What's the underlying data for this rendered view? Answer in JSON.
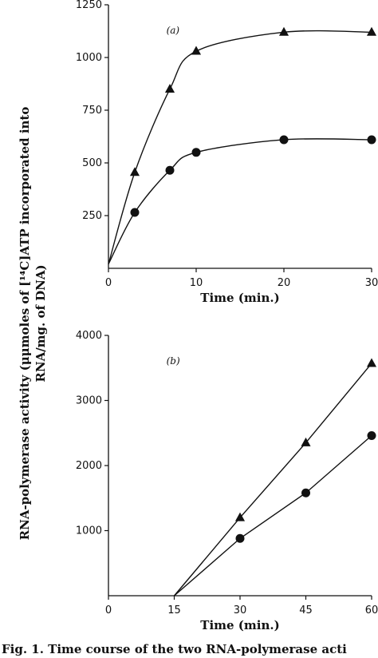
{
  "y_label_line1": "RNA-polymerase activity (μμmoles of [¹⁴C]ATP incorporated into",
  "y_label_line2": "RNA/mg. of DNA)",
  "caption": "Fig. 1. Time course of the two RNA-polymerase acti",
  "chart_data": [
    {
      "type": "line",
      "panel_label": "(a)",
      "xlabel": "Time (min.)",
      "ylabel": "",
      "xlim": [
        0,
        30
      ],
      "ylim": [
        0,
        1250
      ],
      "x_ticks": [
        0,
        10,
        20,
        30
      ],
      "y_ticks": [
        250,
        500,
        750,
        1000,
        1250
      ],
      "grid": false,
      "series": [
        {
          "marker": "triangle",
          "curve": "smooth",
          "points": [
            [
              0,
              20
            ],
            [
              3,
              455
            ],
            [
              7,
              850
            ],
            [
              10,
              1030
            ],
            [
              20,
              1120
            ],
            [
              30,
              1120
            ]
          ]
        },
        {
          "marker": "circle",
          "curve": "smooth",
          "points": [
            [
              0,
              20
            ],
            [
              3,
              265
            ],
            [
              7,
              465
            ],
            [
              10,
              550
            ],
            [
              20,
              610
            ],
            [
              30,
              610
            ]
          ]
        }
      ]
    },
    {
      "type": "line",
      "panel_label": "(b)",
      "xlabel": "Time (min.)",
      "ylabel": "",
      "xlim": [
        0,
        60
      ],
      "ylim": [
        0,
        4000
      ],
      "x_ticks": [
        0,
        15,
        30,
        45,
        60
      ],
      "y_ticks": [
        1000,
        2000,
        3000,
        4000
      ],
      "grid": false,
      "series": [
        {
          "marker": "triangle",
          "curve": "straight",
          "points": [
            [
              15,
              0
            ],
            [
              30,
              1200
            ],
            [
              45,
              2350
            ],
            [
              60,
              3570
            ]
          ]
        },
        {
          "marker": "circle",
          "curve": "straight",
          "points": [
            [
              15,
              0
            ],
            [
              30,
              880
            ],
            [
              45,
              1580
            ],
            [
              60,
              2460
            ]
          ]
        }
      ]
    }
  ]
}
